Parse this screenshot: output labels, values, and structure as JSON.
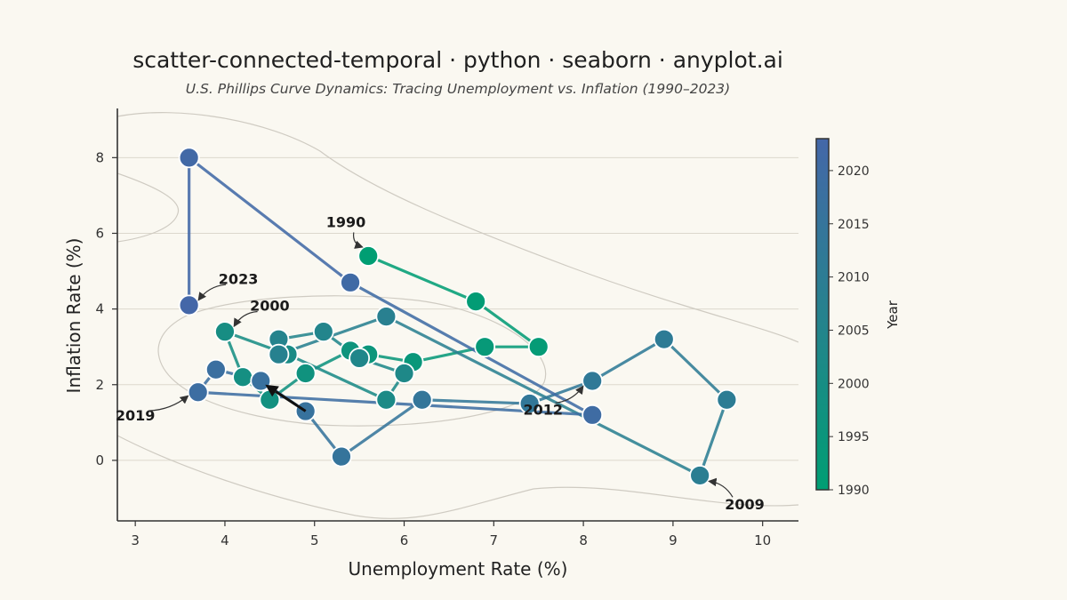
{
  "chart_data": {
    "type": "scatter",
    "title": "scatter-connected-temporal · python · seaborn · anyplot.ai",
    "subtitle": "U.S. Phillips Curve Dynamics: Tracing Unemployment vs. Inflation (1990–2023)",
    "xlabel": "Unemployment Rate (%)",
    "ylabel": "Inflation Rate (%)",
    "xlim": [
      2.8,
      10.4
    ],
    "ylim": [
      -1.6,
      9.3
    ],
    "xticks": [
      3,
      4,
      5,
      6,
      7,
      8,
      9,
      10
    ],
    "yticks": [
      0,
      2,
      4,
      6,
      8
    ],
    "grid": "horizontal",
    "colorbar": {
      "label": "Year",
      "range": [
        1990,
        2023
      ],
      "ticks": [
        1990,
        1995,
        2000,
        2005,
        2010,
        2015,
        2020
      ],
      "colormap": "viridis-like (green to blue)"
    },
    "series": [
      {
        "points": [
          {
            "year": 1990,
            "x": 5.6,
            "y": 5.4
          },
          {
            "year": 1991,
            "x": 6.8,
            "y": 4.2
          },
          {
            "year": 1992,
            "x": 7.5,
            "y": 3.0
          },
          {
            "year": 1993,
            "x": 6.9,
            "y": 3.0
          },
          {
            "year": 1994,
            "x": 6.1,
            "y": 2.6
          },
          {
            "year": 1995,
            "x": 5.6,
            "y": 2.8
          },
          {
            "year": 1996,
            "x": 5.4,
            "y": 2.9
          },
          {
            "year": 1997,
            "x": 4.9,
            "y": 2.3
          },
          {
            "year": 1998,
            "x": 4.5,
            "y": 1.6
          },
          {
            "year": 1999,
            "x": 4.2,
            "y": 2.2
          },
          {
            "year": 2000,
            "x": 4.0,
            "y": 3.4
          },
          {
            "year": 2001,
            "x": 4.7,
            "y": 2.8
          },
          {
            "year": 2002,
            "x": 5.8,
            "y": 1.6
          },
          {
            "year": 2003,
            "x": 6.0,
            "y": 2.3
          },
          {
            "year": 2004,
            "x": 5.5,
            "y": 2.7
          },
          {
            "year": 2005,
            "x": 5.1,
            "y": 3.4
          },
          {
            "year": 2006,
            "x": 4.6,
            "y": 3.2
          },
          {
            "year": 2007,
            "x": 4.6,
            "y": 2.8
          },
          {
            "year": 2008,
            "x": 5.8,
            "y": 3.8
          },
          {
            "year": 2009,
            "x": 9.3,
            "y": -0.4
          },
          {
            "year": 2010,
            "x": 9.6,
            "y": 1.6
          },
          {
            "year": 2011,
            "x": 8.9,
            "y": 3.2
          },
          {
            "year": 2012,
            "x": 8.1,
            "y": 2.1
          },
          {
            "year": 2013,
            "x": 7.4,
            "y": 1.5
          },
          {
            "year": 2014,
            "x": 6.2,
            "y": 1.6
          },
          {
            "year": 2015,
            "x": 5.3,
            "y": 0.1
          },
          {
            "year": 2016,
            "x": 4.9,
            "y": 1.3
          },
          {
            "year": 2017,
            "x": 4.4,
            "y": 2.1
          },
          {
            "year": 2018,
            "x": 3.9,
            "y": 2.4
          },
          {
            "year": 2019,
            "x": 3.7,
            "y": 1.8
          },
          {
            "year": 2020,
            "x": 8.1,
            "y": 1.2
          },
          {
            "year": 2021,
            "x": 5.4,
            "y": 4.7
          },
          {
            "year": 2022,
            "x": 3.6,
            "y": 8.0
          },
          {
            "year": 2023,
            "x": 3.6,
            "y": 4.1
          }
        ]
      }
    ],
    "annotations": [
      {
        "text": "1990",
        "year": 1990,
        "label_x": 5.35,
        "label_y": 6.3
      },
      {
        "text": "2000",
        "year": 2000,
        "label_x": 4.5,
        "label_y": 4.1
      },
      {
        "text": "2009",
        "year": 2009,
        "label_x": 9.8,
        "label_y": -1.15
      },
      {
        "text": "2012",
        "year": 2012,
        "label_x": 7.55,
        "label_y": 1.35
      },
      {
        "text": "2019",
        "year": 2019,
        "label_x": 3.0,
        "label_y": 1.2
      },
      {
        "text": "2023",
        "year": 2023,
        "label_x": 4.15,
        "label_y": 4.8
      }
    ],
    "direction_arrow": {
      "from": [
        4.9,
        1.3
      ],
      "to": [
        4.45,
        2.0
      ]
    },
    "colors": {
      "start": "#009E73",
      "end": "#4467A8",
      "background": "#FAF8F1"
    }
  }
}
